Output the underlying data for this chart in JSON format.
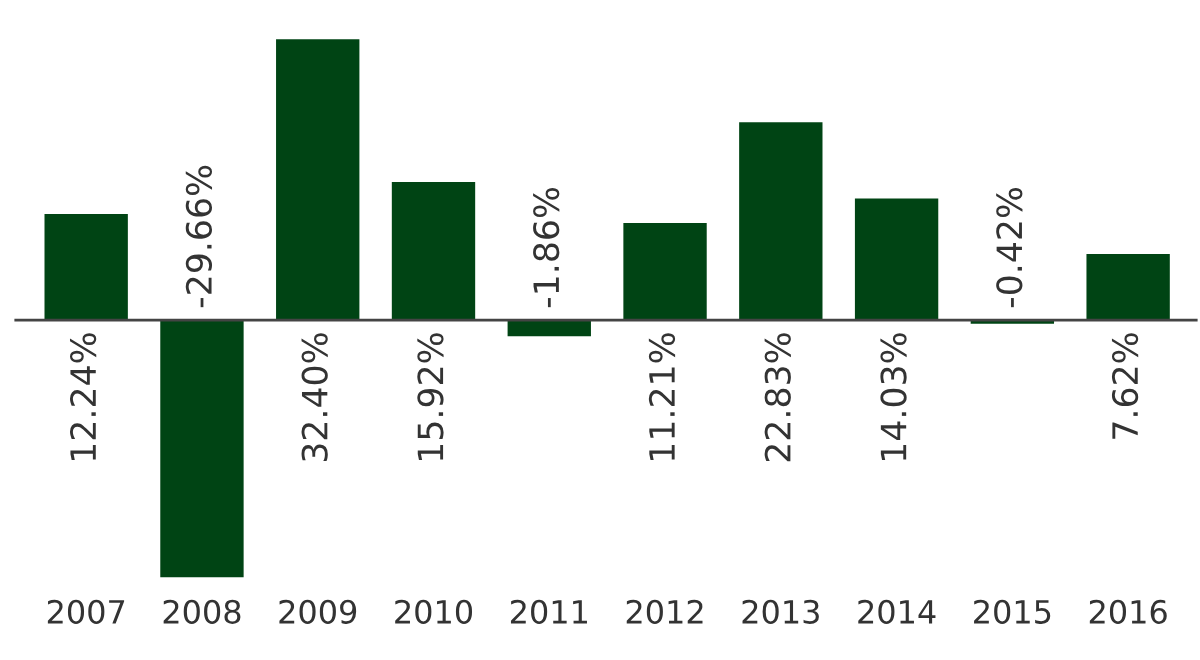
{
  "chart_data": {
    "type": "bar",
    "categories": [
      "2007",
      "2008",
      "2009",
      "2010",
      "2011",
      "2012",
      "2013",
      "2014",
      "2015",
      "2016"
    ],
    "values": [
      12.24,
      -29.66,
      32.4,
      15.92,
      -1.86,
      11.21,
      22.83,
      14.03,
      -0.42,
      7.62
    ],
    "value_labels": [
      "12.24%",
      "-29.66%",
      "32.40%",
      "15.92%",
      "-1.86%",
      "11.21%",
      "22.83%",
      "14.03%",
      "-0.42%",
      "7.62%"
    ],
    "color": "#004414",
    "tick_labels": "x",
    "grid": false,
    "legend": false
  }
}
